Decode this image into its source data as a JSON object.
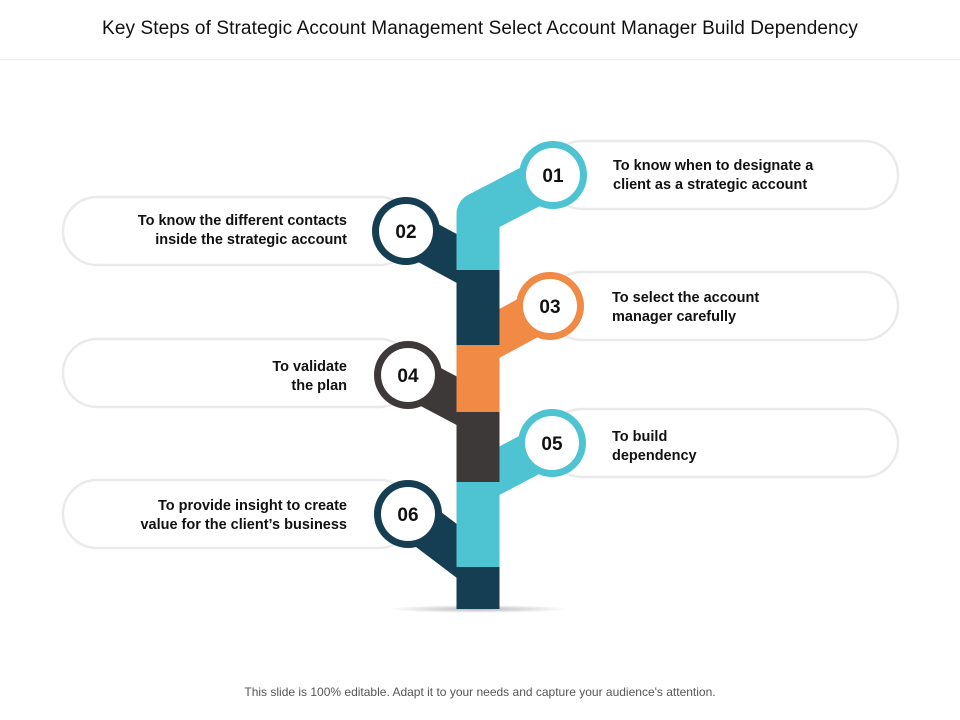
{
  "title": "Key Steps of Strategic Account Management  Select Account Manager  Build Dependency",
  "footer": "This slide is 100% editable. Adapt it to your needs and capture your audience's attention.",
  "colors": {
    "teal": "#4ec3d2",
    "navy": "#163e52",
    "orange": "#f08a45",
    "charcoal": "#3d3938",
    "pill_border": "#eaeaea"
  },
  "steps": [
    {
      "number": "01",
      "text": "To know when to designate a\nclient as a strategic account",
      "side": "right",
      "color": "teal"
    },
    {
      "number": "02",
      "text": "To know the different contacts\ninside the strategic account",
      "side": "left",
      "color": "navy"
    },
    {
      "number": "03",
      "text": "To select the account\nmanager carefully",
      "side": "right",
      "color": "orange"
    },
    {
      "number": "04",
      "text": "To validate\nthe plan",
      "side": "left",
      "color": "charcoal"
    },
    {
      "number": "05",
      "text": "To build\ndependency",
      "side": "right",
      "color": "teal"
    },
    {
      "number": "06",
      "text": "To provide insight to create\nvalue for the client’s business",
      "side": "left",
      "color": "navy"
    }
  ]
}
